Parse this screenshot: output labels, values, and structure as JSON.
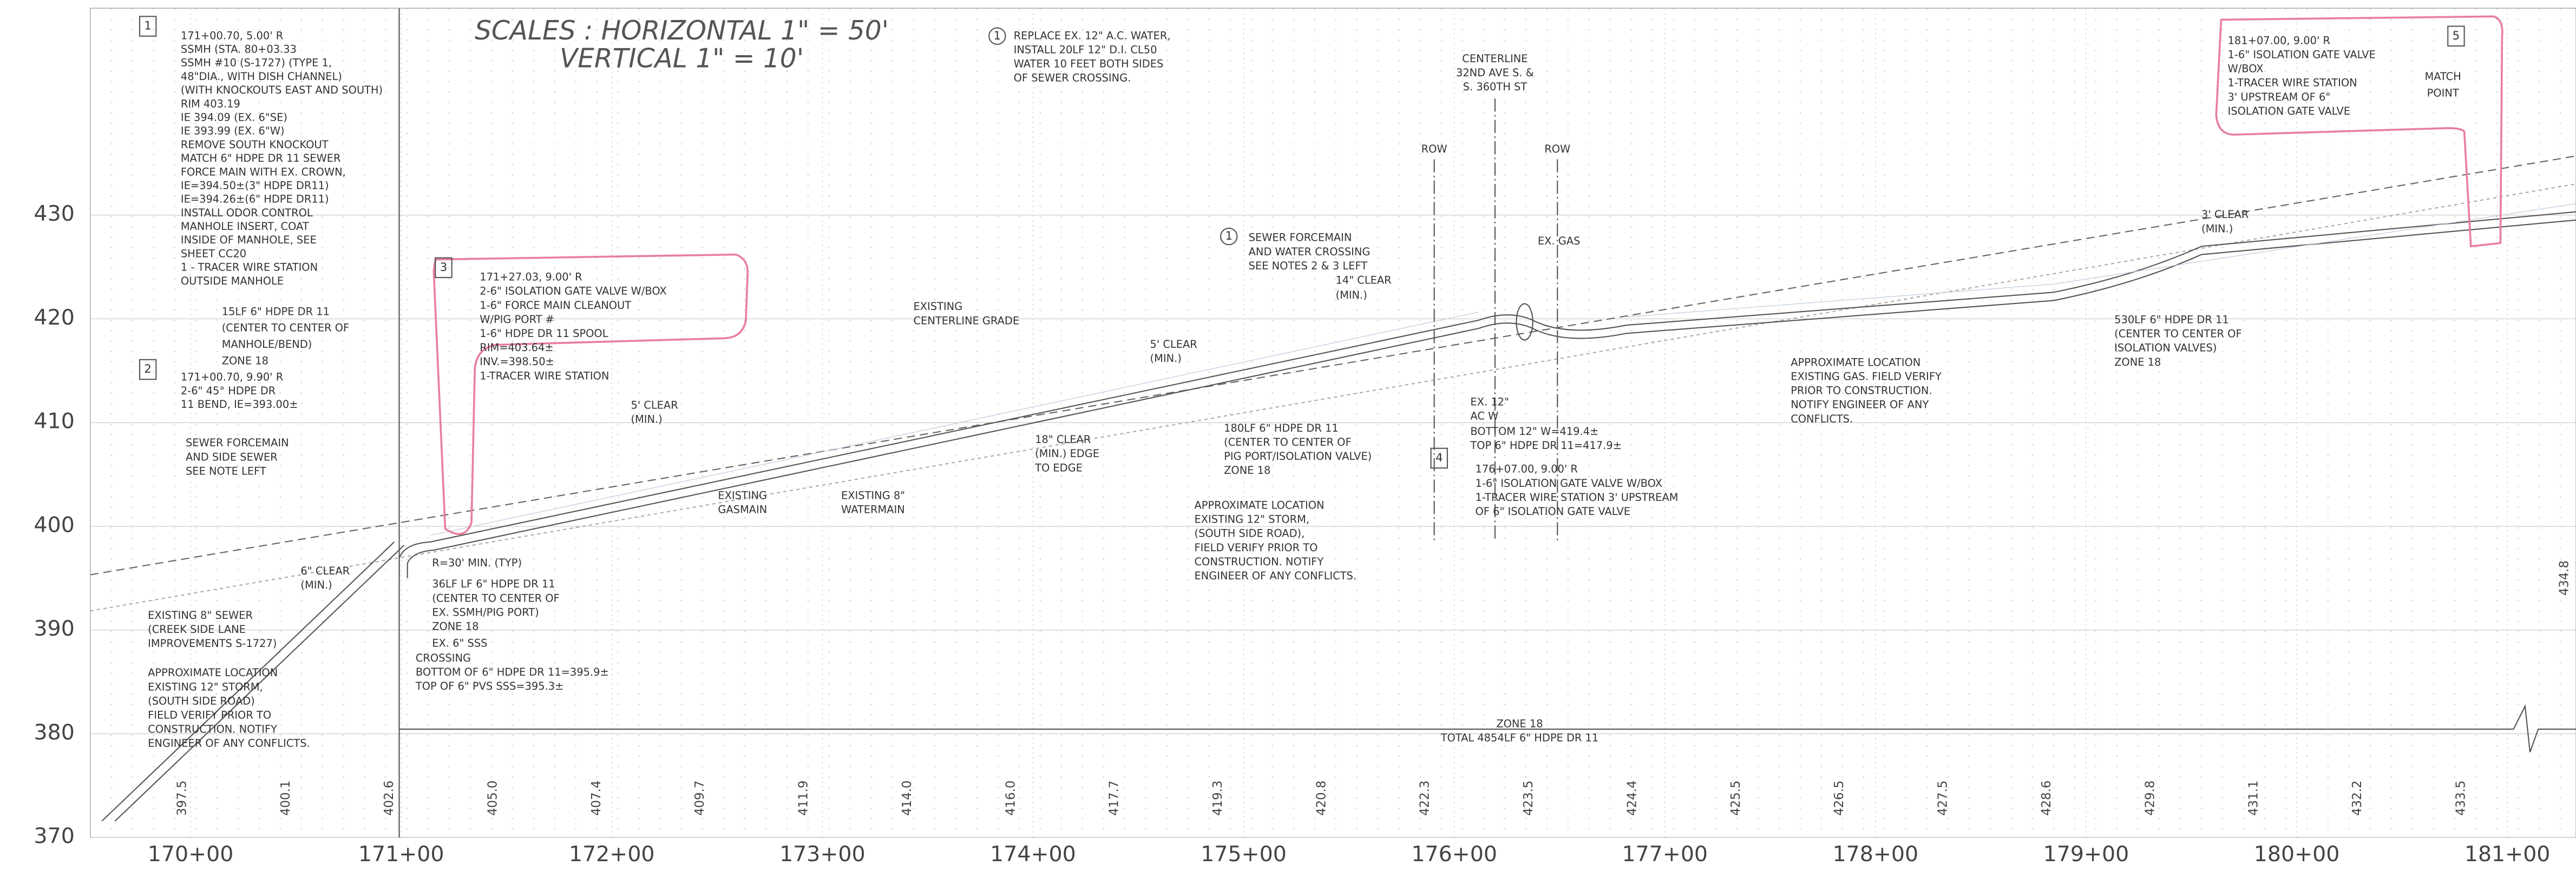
{
  "title": [
    "SCALES : HORIZONTAL 1\" = 50'",
    "VERTICAL 1\" = 10'"
  ],
  "elevation_ticks": [
    430,
    420,
    410,
    400,
    390,
    380,
    370
  ],
  "station_labels": [
    "170+00",
    "171+00",
    "172+00",
    "173+00",
    "174+00",
    "175+00",
    "176+00",
    "177+00",
    "178+00",
    "179+00",
    "180+00",
    "181+00"
  ],
  "ground_elevations": [
    "397.5",
    "400.1",
    "402.6",
    "405.0",
    "407.4",
    "409.7",
    "411.9",
    "414.0",
    "416.0",
    "417.7",
    "419.3",
    "420.8",
    "422.3",
    "423.5",
    "424.4",
    "425.5",
    "426.5",
    "427.5",
    "428.6",
    "429.8",
    "431.1",
    "432.2",
    "433.5"
  ],
  "ground_elevation_end": "434.8",
  "notes": [
    {
      "label": "1",
      "lines": [
        "171+00.70, 5.00' R",
        "SSMH (STA. 80+03.33",
        "SSMH #10 (S-1727) (TYPE 1,",
        "48\"DIA., WITH DISH CHANNEL)",
        "(WITH KNOCKOUTS EAST AND SOUTH)",
        "RIM 403.19",
        "IE 394.09 (EX. 6\"SE)",
        "IE 393.99 (EX. 6\"W)",
        "REMOVE SOUTH KNOCKOUT",
        "MATCH 6\" HDPE DR 11 SEWER",
        "FORCE MAIN WITH EX. CROWN,",
        "IE=394.50±(3\" HDPE DR11)",
        "IE=394.26±(6\" HDPE DR11)",
        "INSTALL ODOR CONTROL",
        "MANHOLE INSERT, COAT",
        "INSIDE OF MANHOLE, SEE",
        "SHEET CC20",
        "1 - TRACER WIRE STATION",
        "OUTSIDE MANHOLE"
      ]
    },
    {
      "label": "2",
      "lines": [
        "171+00.70, 9.90' R",
        "2-6\" 45° HDPE DR",
        "11 BEND, IE=393.00±"
      ]
    },
    {
      "label": "3",
      "lines": [
        "171+27.03, 9.00' R",
        "2-6\" ISOLATION GATE VALVE W/BOX",
        "1-6\" FORCE MAIN CLEANOUT",
        "W/PIG PORT #",
        "1-6\" HDPE DR 11 SPOOL",
        "RIM=403.64±",
        "INV.=398.50±",
        "1-TRACER WIRE STATION"
      ]
    },
    {
      "label": "4",
      "lines": [
        "176+07.00, 9.00' R",
        "1-6\" ISOLATION GATE VALVE W/BOX",
        "1-TRACER WIRE STATION 3' UPSTREAM",
        "OF 6\" ISOLATION GATE VALVE"
      ]
    },
    {
      "label": "5",
      "lines": [
        "181+07.00, 9.00' R",
        "1-6\" ISOLATION GATE VALVE",
        "W/BOX",
        "1-TRACER WIRE STATION",
        "3' UPSTREAM OF 6\"",
        "ISOLATION GATE VALVE"
      ]
    }
  ],
  "callouts": [
    {
      "label": "1",
      "lines": [
        "REPLACE EX. 12\" A.C. WATER,",
        "INSTALL 20LF 12\" D.I. CL50",
        "WATER 10 FEET BOTH SIDES",
        "OF SEWER CROSSING."
      ]
    },
    {
      "label": "1",
      "lines": [
        "SEWER FORCEMAIN",
        "AND WATER CROSSING",
        "SEE NOTES 2 & 3 LEFT"
      ]
    }
  ],
  "annotations": [
    {
      "lines": [
        "15LF 6\" HDPE DR 11",
        "(CENTER TO CENTER OF",
        "MANHOLE/BEND)",
        "ZONE 18"
      ]
    },
    {
      "lines": [
        "MATCH",
        "POINT"
      ]
    },
    {
      "lines": [
        "CENTERLINE",
        "32ND AVE S. &",
        "S. 360TH ST"
      ]
    },
    {
      "lines": [
        "ROW"
      ]
    },
    {
      "lines": [
        "ROW"
      ]
    },
    {
      "lines": [
        "14\" CLEAR",
        "(MIN.)"
      ]
    },
    {
      "lines": [
        "EX. GAS"
      ]
    },
    {
      "lines": [
        "EXISTING",
        "CENTERLINE GRADE"
      ]
    },
    {
      "lines": [
        "5' CLEAR",
        "(MIN.)"
      ]
    },
    {
      "lines": [
        "18\" CLEAR",
        "(MIN.) EDGE",
        "TO EDGE"
      ]
    },
    {
      "lines": [
        "180LF 6\" HDPE DR 11",
        "(CENTER TO CENTER OF",
        "PIG PORT/ISOLATION VALVE)",
        "ZONE 18"
      ]
    },
    {
      "lines": [
        "APPROXIMATE LOCATION",
        "EXISTING 12\" STORM,",
        "(SOUTH SIDE ROAD),",
        "FIELD VERIFY PRIOR TO",
        "CONSTRUCTION. NOTIFY",
        "ENGINEER OF ANY CONFLICTS."
      ]
    },
    {
      "lines": [
        "EXISTING",
        "GASMAIN"
      ]
    },
    {
      "lines": [
        "EXISTING 8\"",
        "WATERMAIN"
      ]
    },
    {
      "lines": [
        "5' CLEAR",
        "(MIN.)"
      ]
    },
    {
      "lines": [
        "EX. 12\"",
        "AC W"
      ]
    },
    {
      "lines": [
        "BOTTOM 12\" W=419.4±",
        "TOP 6\" HDPE DR 11=417.9±"
      ]
    },
    {
      "lines": [
        "APPROXIMATE LOCATION",
        "EXISTING GAS. FIELD VERIFY",
        "PRIOR TO CONSTRUCTION.",
        "NOTIFY ENGINEER OF ANY",
        "CONFLICTS."
      ]
    },
    {
      "lines": [
        "3' CLEAR",
        "(MIN.)"
      ]
    },
    {
      "lines": [
        "530LF 6\" HDPE DR 11",
        "(CENTER TO CENTER OF",
        "ISOLATION VALVES)",
        "ZONE 18"
      ]
    },
    {
      "lines": [
        "SEWER FORCEMAIN",
        "AND SIDE SEWER",
        "SEE NOTE LEFT"
      ]
    },
    {
      "lines": [
        "6\" CLEAR",
        "(MIN.)"
      ]
    },
    {
      "lines": [
        "EXISTING 8\" SEWER",
        "(CREEK SIDE LANE",
        "IMPROVEMENTS S-1727)"
      ]
    },
    {
      "lines": [
        "APPROXIMATE LOCATION",
        "EXISTING 12\" STORM,",
        "(SOUTH SIDE ROAD)",
        "FIELD VERIFY PRIOR TO",
        "CONSTRUCTION. NOTIFY",
        "ENGINEER OF ANY CONFLICTS."
      ]
    },
    {
      "lines": [
        "R=30' MIN. (TYP)"
      ]
    },
    {
      "lines": [
        "36LF LF 6\" HDPE DR 11",
        "(CENTER TO CENTER OF",
        "EX. SSMH/PIG PORT)",
        "ZONE 18"
      ]
    },
    {
      "lines": [
        "EX. 6\" SSS"
      ]
    },
    {
      "lines": [
        "CROSSING",
        "BOTTOM OF 6\" HDPE DR 11=395.9±",
        "TOP OF 6\" PVS SSS=395.3±"
      ]
    },
    {
      "lines": [
        "ZONE 18",
        "TOTAL 4854LF 6\" HDPE DR 11"
      ]
    }
  ]
}
